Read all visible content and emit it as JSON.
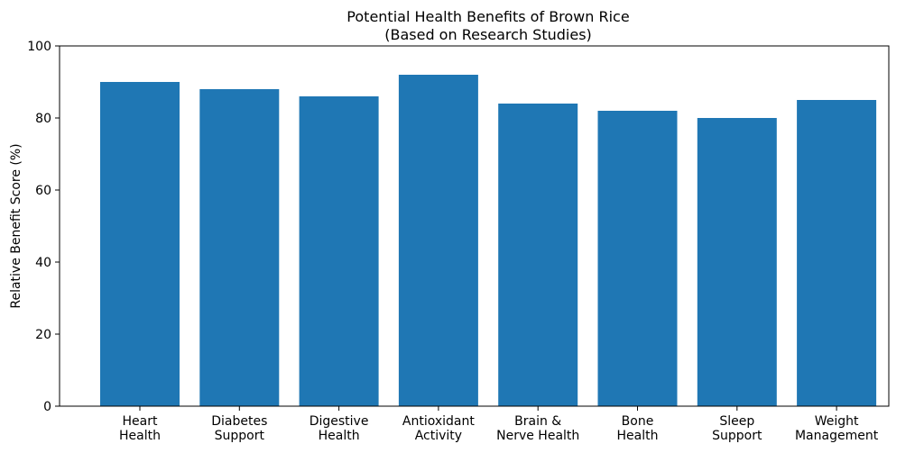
{
  "chart_data": {
    "type": "bar",
    "title": [
      "Potential Health Benefits of Brown Rice",
      "(Based on Research Studies)"
    ],
    "xlabel": "",
    "ylabel": "Relative Benefit Score (%)",
    "ylim": [
      0,
      100
    ],
    "yticks": [
      0,
      20,
      40,
      60,
      80,
      100
    ],
    "categories": [
      [
        "Heart",
        "Health"
      ],
      [
        "Diabetes",
        "Support"
      ],
      [
        "Digestive",
        "Health"
      ],
      [
        "Antioxidant",
        "Activity"
      ],
      [
        "Brain &",
        "Nerve Health"
      ],
      [
        "Bone",
        "Health"
      ],
      [
        "Sleep",
        "Support"
      ],
      [
        "Weight",
        "Management"
      ]
    ],
    "values": [
      90,
      88,
      86,
      92,
      84,
      82,
      80,
      85
    ],
    "bar_color": "#1f77b4",
    "grid": false,
    "legend": false
  }
}
